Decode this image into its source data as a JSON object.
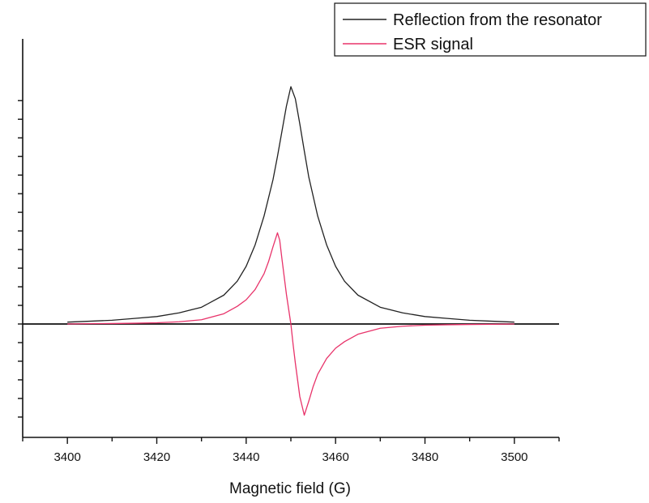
{
  "chart_data": {
    "type": "line",
    "title": "",
    "xlabel": "Magnetic field (G)",
    "ylabel": "",
    "xlim": [
      3390,
      3510
    ],
    "ylim": [
      -1.0,
      2.55
    ],
    "x_ticks": [
      3400,
      3420,
      3440,
      3460,
      3480,
      3500
    ],
    "x_tick_labels": [
      "3400",
      "3420",
      "3440",
      "3460",
      "3480",
      "3500"
    ],
    "y_ticks": [
      -1.0,
      -0.8,
      -0.6,
      -0.4,
      -0.2,
      0.0,
      0.2,
      0.4,
      0.6,
      0.8,
      1.0,
      1.2,
      1.4,
      1.6,
      1.8,
      2.0,
      2.2,
      2.4
    ],
    "y_tick_labels_shown": false,
    "grid": false,
    "legend_position": "top-right",
    "baseline": 0,
    "series": [
      {
        "name": "Reflection from the resonator",
        "color": "#222222",
        "x": [
          3400,
          3405,
          3410,
          3415,
          3420,
          3425,
          3430,
          3435,
          3438,
          3440,
          3442,
          3444,
          3446,
          3447,
          3448,
          3449,
          3450,
          3451,
          3452,
          3453,
          3454,
          3456,
          3458,
          3460,
          3462,
          3465,
          3470,
          3475,
          3480,
          3485,
          3490,
          3495,
          3500
        ],
        "y": [
          0.02,
          0.03,
          0.04,
          0.06,
          0.08,
          0.12,
          0.18,
          0.31,
          0.46,
          0.62,
          0.85,
          1.16,
          1.55,
          1.8,
          2.07,
          2.34,
          2.55,
          2.42,
          2.15,
          1.86,
          1.58,
          1.16,
          0.85,
          0.62,
          0.46,
          0.31,
          0.18,
          0.12,
          0.08,
          0.06,
          0.04,
          0.03,
          0.02
        ]
      },
      {
        "name": "ESR signal",
        "color": "#e8336a",
        "x": [
          3400,
          3405,
          3410,
          3415,
          3420,
          3425,
          3430,
          3435,
          3438,
          3440,
          3442,
          3444,
          3445,
          3446,
          3447,
          3447.5,
          3448,
          3449,
          3450,
          3450.5,
          3451,
          3452,
          3453,
          3454,
          3455,
          3456,
          3458,
          3460,
          3462,
          3465,
          3470,
          3475,
          3480,
          3485,
          3490,
          3495,
          3500
        ],
        "y": [
          0.0,
          0.003,
          0.005,
          0.008,
          0.013,
          0.024,
          0.046,
          0.11,
          0.19,
          0.26,
          0.37,
          0.54,
          0.67,
          0.83,
          0.98,
          0.9,
          0.7,
          0.32,
          0.0,
          -0.22,
          -0.42,
          -0.78,
          -0.98,
          -0.83,
          -0.67,
          -0.54,
          -0.37,
          -0.26,
          -0.19,
          -0.11,
          -0.046,
          -0.024,
          -0.013,
          -0.008,
          -0.005,
          -0.003,
          0.0
        ]
      }
    ]
  }
}
